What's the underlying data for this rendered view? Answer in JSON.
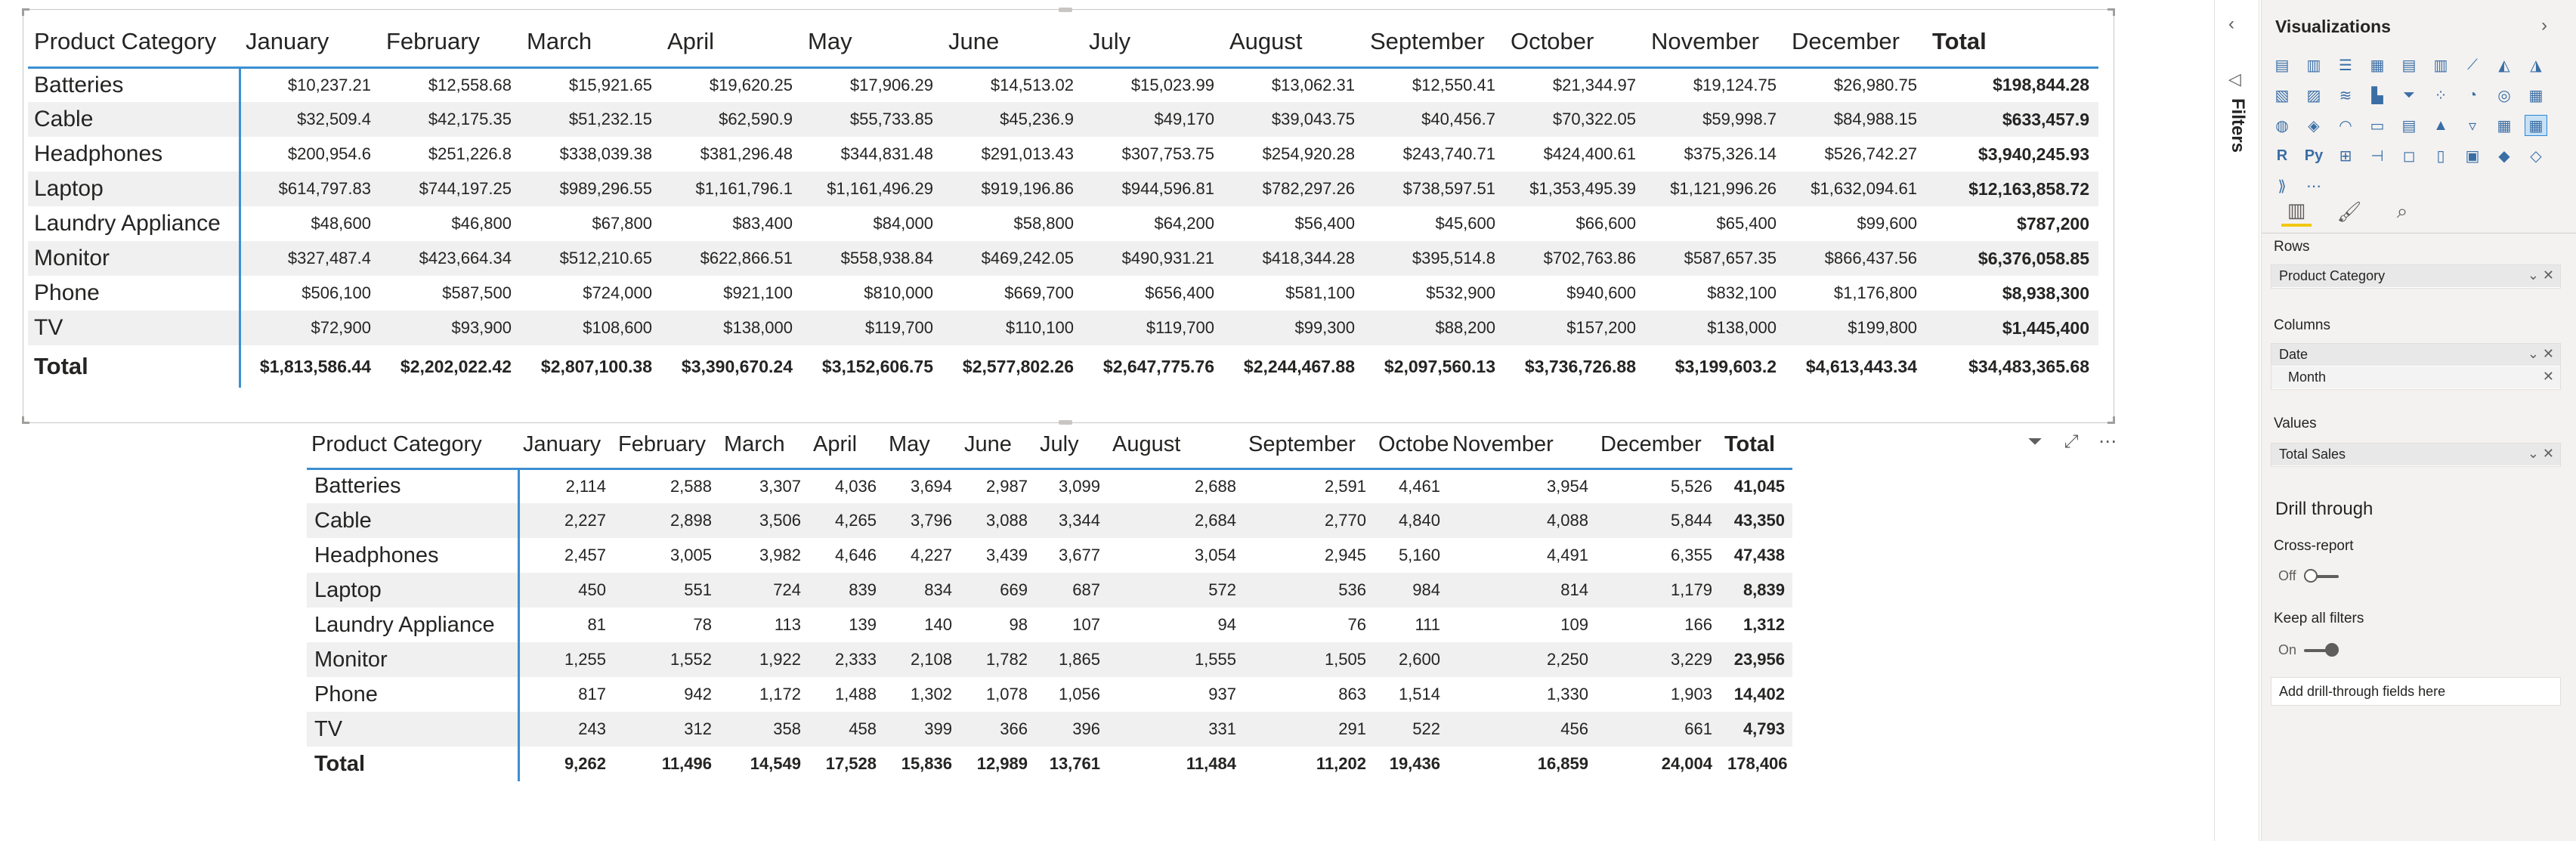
{
  "matrix_sales": {
    "columns": [
      "Product Category",
      "January",
      "February",
      "March",
      "April",
      "May",
      "June",
      "July",
      "August",
      "September",
      "October",
      "November",
      "December",
      "Total"
    ],
    "rows": [
      {
        "category": "Batteries",
        "values": [
          "$10,237.21",
          "$12,558.68",
          "$15,921.65",
          "$19,620.25",
          "$17,906.29",
          "$14,513.02",
          "$15,023.99",
          "$13,062.31",
          "$12,550.41",
          "$21,344.97",
          "$19,124.75",
          "$26,980.75"
        ],
        "total": "$198,844.28"
      },
      {
        "category": "Cable",
        "values": [
          "$32,509.4",
          "$42,175.35",
          "$51,232.15",
          "$62,590.9",
          "$55,733.85",
          "$45,236.9",
          "$49,170",
          "$39,043.75",
          "$40,456.7",
          "$70,322.05",
          "$59,998.7",
          "$84,988.15"
        ],
        "total": "$633,457.9"
      },
      {
        "category": "Headphones",
        "values": [
          "$200,954.6",
          "$251,226.8",
          "$338,039.38",
          "$381,296.48",
          "$344,831.48",
          "$291,013.43",
          "$307,753.75",
          "$254,920.28",
          "$243,740.71",
          "$424,400.61",
          "$375,326.14",
          "$526,742.27"
        ],
        "total": "$3,940,245.93"
      },
      {
        "category": "Laptop",
        "values": [
          "$614,797.83",
          "$744,197.25",
          "$989,296.55",
          "$1,161,796.1",
          "$1,161,496.29",
          "$919,196.86",
          "$944,596.81",
          "$782,297.26",
          "$738,597.51",
          "$1,353,495.39",
          "$1,121,996.26",
          "$1,632,094.61"
        ],
        "total": "$12,163,858.72"
      },
      {
        "category": "Laundry Appliance",
        "values": [
          "$48,600",
          "$46,800",
          "$67,800",
          "$83,400",
          "$84,000",
          "$58,800",
          "$64,200",
          "$56,400",
          "$45,600",
          "$66,600",
          "$65,400",
          "$99,600"
        ],
        "total": "$787,200"
      },
      {
        "category": "Monitor",
        "values": [
          "$327,487.4",
          "$423,664.34",
          "$512,210.65",
          "$622,866.51",
          "$558,938.84",
          "$469,242.05",
          "$490,931.21",
          "$418,344.28",
          "$395,514.8",
          "$702,763.86",
          "$587,657.35",
          "$866,437.56"
        ],
        "total": "$6,376,058.85"
      },
      {
        "category": "Phone",
        "values": [
          "$506,100",
          "$587,500",
          "$724,000",
          "$921,100",
          "$810,000",
          "$669,700",
          "$656,400",
          "$581,100",
          "$532,900",
          "$940,600",
          "$832,100",
          "$1,176,800"
        ],
        "total": "$8,938,300"
      },
      {
        "category": "TV",
        "values": [
          "$72,900",
          "$93,900",
          "$108,600",
          "$138,000",
          "$119,700",
          "$110,100",
          "$119,700",
          "$99,300",
          "$88,200",
          "$157,200",
          "$138,000",
          "$199,800"
        ],
        "total": "$1,445,400"
      }
    ],
    "total_row": {
      "label": "Total",
      "values": [
        "$1,813,586.44",
        "$2,202,022.42",
        "$2,807,100.38",
        "$3,390,670.24",
        "$3,152,606.75",
        "$2,577,802.26",
        "$2,647,775.76",
        "$2,244,467.88",
        "$2,097,560.13",
        "$3,736,726.88",
        "$3,199,603.2",
        "$4,613,443.34"
      ],
      "total": "$34,483,365.68"
    }
  },
  "matrix_units": {
    "columns": [
      "Product Category",
      "January",
      "February",
      "March",
      "April",
      "May",
      "June",
      "July",
      "August",
      "September",
      "October",
      "November",
      "December",
      "Total"
    ],
    "rows": [
      {
        "category": "Batteries",
        "values": [
          "2,114",
          "2,588",
          "3,307",
          "4,036",
          "3,694",
          "2,987",
          "3,099",
          "2,688",
          "2,591",
          "4,461",
          "3,954",
          "5,526"
        ],
        "total": "41,045"
      },
      {
        "category": "Cable",
        "values": [
          "2,227",
          "2,898",
          "3,506",
          "4,265",
          "3,796",
          "3,088",
          "3,344",
          "2,684",
          "2,770",
          "4,840",
          "4,088",
          "5,844"
        ],
        "total": "43,350"
      },
      {
        "category": "Headphones",
        "values": [
          "2,457",
          "3,005",
          "3,982",
          "4,646",
          "4,227",
          "3,439",
          "3,677",
          "3,054",
          "2,945",
          "5,160",
          "4,491",
          "6,355"
        ],
        "total": "47,438"
      },
      {
        "category": "Laptop",
        "values": [
          "450",
          "551",
          "724",
          "839",
          "834",
          "669",
          "687",
          "572",
          "536",
          "984",
          "814",
          "1,179"
        ],
        "total": "8,839"
      },
      {
        "category": "Laundry Appliance",
        "values": [
          "81",
          "78",
          "113",
          "139",
          "140",
          "98",
          "107",
          "94",
          "76",
          "111",
          "109",
          "166"
        ],
        "total": "1,312"
      },
      {
        "category": "Monitor",
        "values": [
          "1,255",
          "1,552",
          "1,922",
          "2,333",
          "2,108",
          "1,782",
          "1,865",
          "1,555",
          "1,505",
          "2,600",
          "2,250",
          "3,229"
        ],
        "total": "23,956"
      },
      {
        "category": "Phone",
        "values": [
          "817",
          "942",
          "1,172",
          "1,488",
          "1,302",
          "1,078",
          "1,056",
          "937",
          "863",
          "1,514",
          "1,330",
          "1,903"
        ],
        "total": "14,402"
      },
      {
        "category": "TV",
        "values": [
          "243",
          "312",
          "358",
          "458",
          "399",
          "366",
          "396",
          "331",
          "291",
          "522",
          "456",
          "661"
        ],
        "total": "4,793"
      }
    ],
    "total_row": {
      "label": "Total",
      "values": [
        "9,262",
        "11,496",
        "14,549",
        "17,528",
        "15,836",
        "12,989",
        "13,761",
        "11,484",
        "11,202",
        "19,436",
        "16,859",
        "24,004"
      ],
      "total": "178,406"
    }
  },
  "filters_pane": {
    "label": "Filters"
  },
  "viz_pane": {
    "title": "Visualizations",
    "rows_label": "Rows",
    "rows_field": "Product Category",
    "columns_label": "Columns",
    "columns_field": "Date",
    "columns_subfield": "Month",
    "values_label": "Values",
    "values_field": "Total Sales",
    "drill_through_title": "Drill through",
    "cross_report_label": "Cross-report",
    "cross_report_state": "Off",
    "keep_filters_label": "Keep all filters",
    "keep_filters_state": "On",
    "drop_placeholder": "Add drill-through fields here",
    "r_label": "R",
    "py_label": "Py"
  },
  "colors": {
    "accent": "#3c8fd1",
    "band": "#f0f0f0",
    "pane": "#f3f2f1",
    "format_tab": "#f2c811"
  }
}
